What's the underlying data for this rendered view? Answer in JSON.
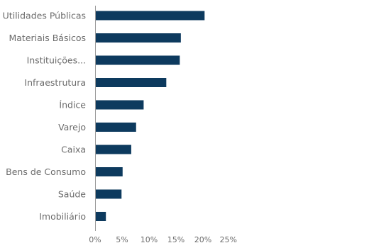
{
  "chart_data": {
    "type": "bar",
    "orientation": "horizontal",
    "categories": [
      "Utilidades Públicas",
      "Materiais Básicos",
      "Instituições...",
      "Infraestrutura",
      "Índice",
      "Varejo",
      "Caixa",
      "Bens de Consumo",
      "Saúde",
      "Imobiliário"
    ],
    "values": [
      20.3,
      15.9,
      15.7,
      13.2,
      9.0,
      7.6,
      6.7,
      5.1,
      4.9,
      2.0
    ],
    "xlim": [
      0,
      25
    ],
    "ticks": [
      0,
      5,
      10,
      15,
      20,
      25
    ],
    "tick_labels": [
      "0%",
      "5%",
      "10%",
      "15%",
      "20%",
      "25%"
    ],
    "title": "",
    "xlabel": "",
    "ylabel": "",
    "grid": false,
    "bar_color": "#0d3a5e",
    "axis_color": "#9a9a9a",
    "label_color": "#6b6b6b"
  }
}
